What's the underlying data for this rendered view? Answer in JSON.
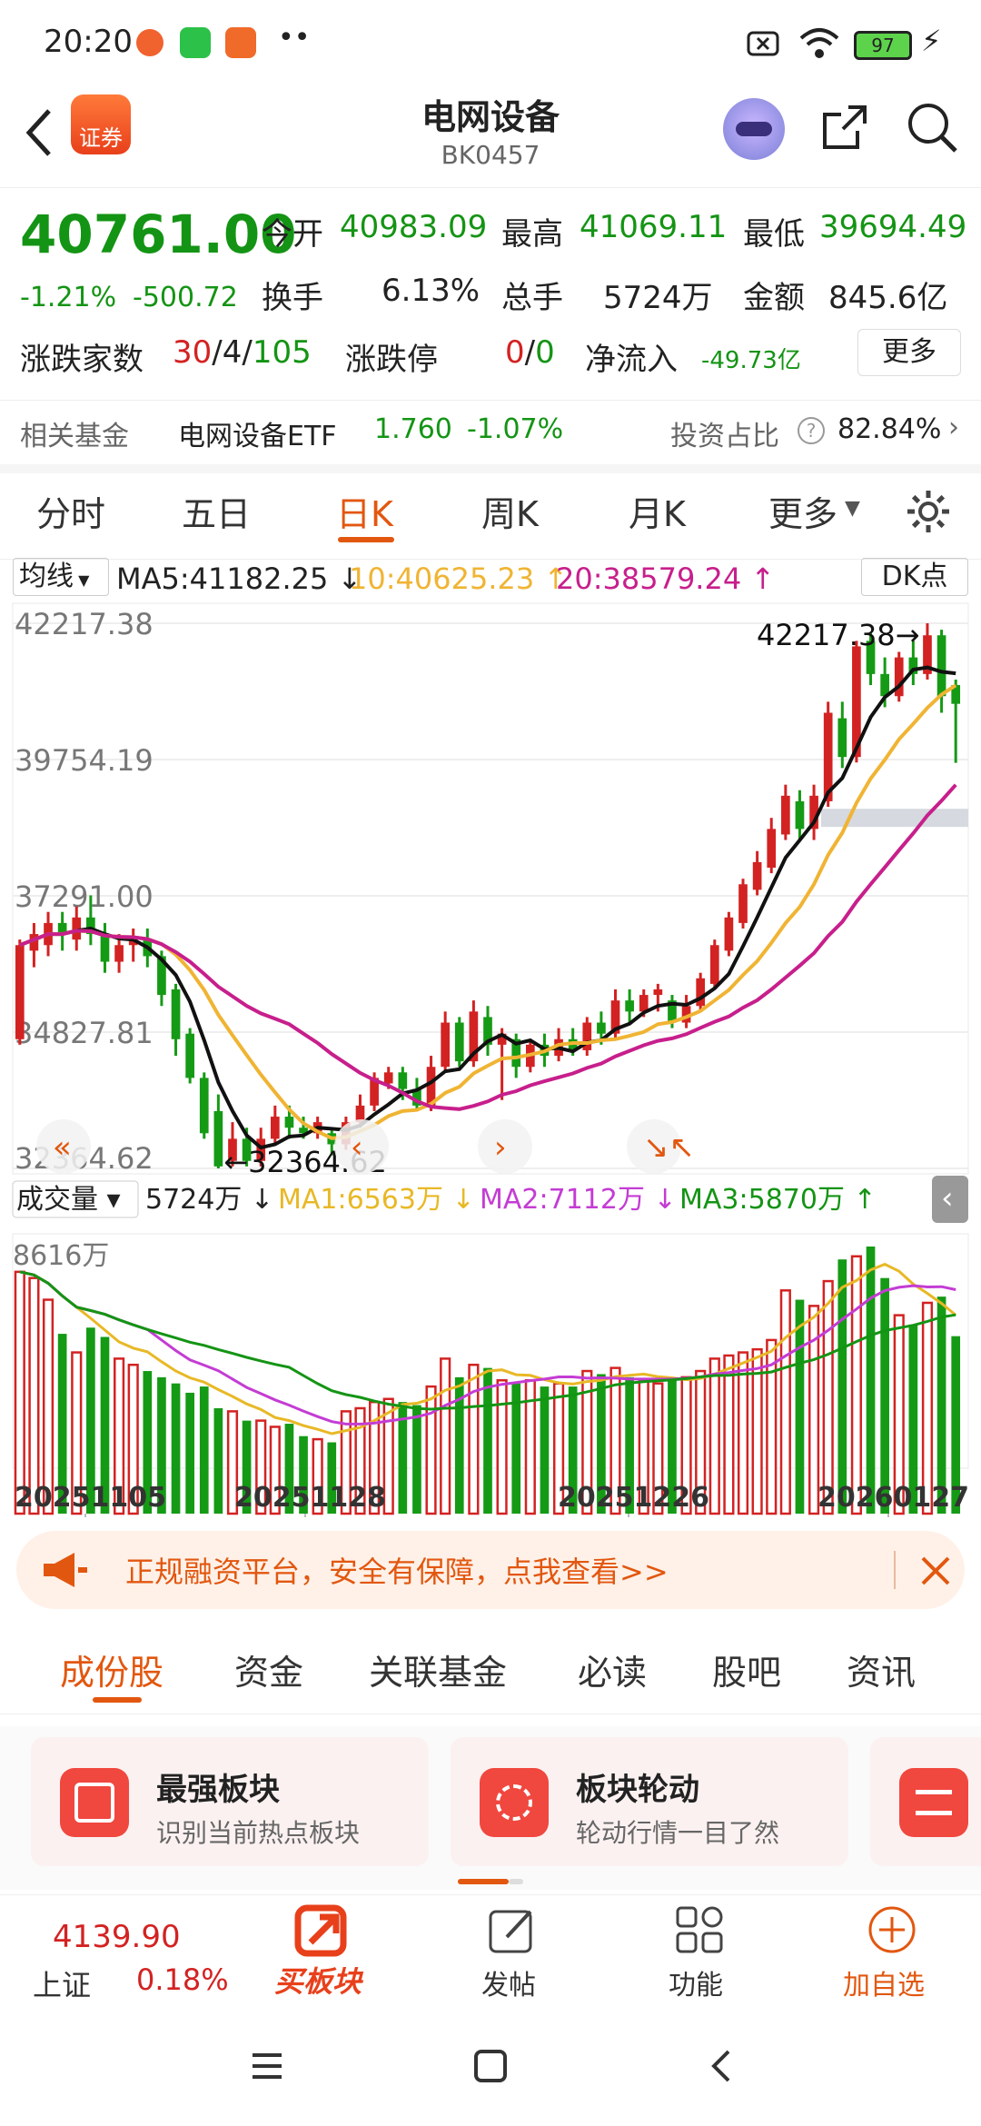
{
  "status_bar": {
    "time": "20:20",
    "battery": "97"
  },
  "header": {
    "back_icon": "back-arrow-icon",
    "logo_text": "证券",
    "title": "电网设备",
    "code": "BK0457"
  },
  "quote": {
    "price": "40761.00",
    "change_pct": "-1.21%",
    "change": "-500.72",
    "open_label": "今开",
    "open": "40983.09",
    "high_label": "最高",
    "high": "41069.11",
    "low_label": "最低",
    "low": "39694.49",
    "turnover_label": "换手",
    "turnover": "6.13%",
    "volume_label": "总手",
    "volume": "5724万",
    "amount_label": "金额",
    "amount": "845.6亿",
    "breadth_label": "涨跌家数",
    "breadth_up": "30",
    "breadth_flat": "4",
    "breadth_down": "105",
    "sep1": "/",
    "sep2": "/",
    "limit_label": "涨跌停",
    "limit_up": "0",
    "limit_down": "0",
    "limit_sep": "/",
    "netflow_label": "净流入",
    "netflow": "-49.73亿",
    "more_button": "更多"
  },
  "fund": {
    "label": "相关基金",
    "name": "电网设备ETF",
    "price": "1.760",
    "change": "-1.07%",
    "ratio_label": "投资占比",
    "ratio": "82.84%"
  },
  "tabs": [
    "分时",
    "五日",
    "日K",
    "周K",
    "月K",
    "更多"
  ],
  "active_tab": 2,
  "ma": {
    "selector": "均线",
    "ma5": "MA5:41182.25",
    "ma10": "10:40625.23",
    "ma20": "20:38579.24",
    "dk_button": "DK点"
  },
  "vol": {
    "selector": "成交量",
    "vol": "5724万",
    "ma1": "MA1:6563万",
    "ma2": "MA2:7112万",
    "ma3": "MA3:5870万",
    "axis_top": "8616万"
  },
  "chart_data": {
    "type": "candlestick",
    "y_ticks": [
      "42217.38",
      "39754.19",
      "37291.00",
      "34827.81",
      "32364.62"
    ],
    "ylim": [
      32364.62,
      42217.38
    ],
    "high_annotation": "42217.38",
    "low_annotation": "32364.62",
    "x_ticks": [
      "20251105",
      "20251128",
      "20251226",
      "20260127"
    ],
    "candles": [
      {
        "o": 34700,
        "c": 36400,
        "h": 36500,
        "l": 34600,
        "v": 7800
      },
      {
        "o": 36300,
        "c": 36600,
        "h": 36800,
        "l": 36000,
        "v": 7600
      },
      {
        "o": 36400,
        "c": 36800,
        "h": 37000,
        "l": 36200,
        "v": 6900
      },
      {
        "o": 36800,
        "c": 36600,
        "h": 37000,
        "l": 36300,
        "v": 5800
      },
      {
        "o": 36500,
        "c": 36900,
        "h": 37100,
        "l": 36300,
        "v": 5200
      },
      {
        "o": 36900,
        "c": 36600,
        "h": 37300,
        "l": 36400,
        "v": 6000
      },
      {
        "o": 36600,
        "c": 36100,
        "h": 36800,
        "l": 35900,
        "v": 5700
      },
      {
        "o": 36100,
        "c": 36400,
        "h": 36600,
        "l": 35900,
        "v": 5000
      },
      {
        "o": 36400,
        "c": 36500,
        "h": 36700,
        "l": 36100,
        "v": 4800
      },
      {
        "o": 36500,
        "c": 36200,
        "h": 36700,
        "l": 36000,
        "v": 4600
      },
      {
        "o": 36200,
        "c": 35500,
        "h": 36300,
        "l": 35300,
        "v": 4400
      },
      {
        "o": 35600,
        "c": 34700,
        "h": 35700,
        "l": 34400,
        "v": 4200
      },
      {
        "o": 34800,
        "c": 34000,
        "h": 34900,
        "l": 33900,
        "v": 3900
      },
      {
        "o": 34000,
        "c": 33000,
        "h": 34100,
        "l": 32900,
        "v": 4100
      },
      {
        "o": 33400,
        "c": 32400,
        "h": 33700,
        "l": 32364,
        "v": 3400
      },
      {
        "o": 32500,
        "c": 32900,
        "h": 33200,
        "l": 32400,
        "v": 3300
      },
      {
        "o": 32900,
        "c": 32500,
        "h": 33100,
        "l": 32400,
        "v": 3000
      },
      {
        "o": 32500,
        "c": 32900,
        "h": 33100,
        "l": 32400,
        "v": 3000
      },
      {
        "o": 32900,
        "c": 33300,
        "h": 33500,
        "l": 32800,
        "v": 2800
      },
      {
        "o": 33300,
        "c": 33100,
        "h": 33500,
        "l": 32900,
        "v": 2900
      },
      {
        "o": 33100,
        "c": 33000,
        "h": 33300,
        "l": 32900,
        "v": 2500
      },
      {
        "o": 33000,
        "c": 33200,
        "h": 33300,
        "l": 32900,
        "v": 2400
      },
      {
        "o": 33000,
        "c": 32800,
        "h": 33100,
        "l": 32600,
        "v": 2300
      },
      {
        "o": 32800,
        "c": 33200,
        "h": 33300,
        "l": 32700,
        "v": 3300
      },
      {
        "o": 33200,
        "c": 33500,
        "h": 33700,
        "l": 33100,
        "v": 3400
      },
      {
        "o": 33500,
        "c": 34000,
        "h": 34100,
        "l": 33400,
        "v": 3600
      },
      {
        "o": 33900,
        "c": 34100,
        "h": 34200,
        "l": 33800,
        "v": 3700
      },
      {
        "o": 34100,
        "c": 33800,
        "h": 34200,
        "l": 33600,
        "v": 3600
      },
      {
        "o": 33800,
        "c": 33500,
        "h": 34000,
        "l": 33400,
        "v": 3500
      },
      {
        "o": 33500,
        "c": 34200,
        "h": 34400,
        "l": 33400,
        "v": 4100
      },
      {
        "o": 34200,
        "c": 35000,
        "h": 35200,
        "l": 34100,
        "v": 5000
      },
      {
        "o": 35000,
        "c": 34300,
        "h": 35100,
        "l": 34200,
        "v": 4400
      },
      {
        "o": 34300,
        "c": 35200,
        "h": 35400,
        "l": 34200,
        "v": 4800
      },
      {
        "o": 35100,
        "c": 34600,
        "h": 35300,
        "l": 34400,
        "v": 4700
      },
      {
        "o": 34600,
        "c": 34800,
        "h": 34900,
        "l": 33600,
        "v": 4300
      },
      {
        "o": 34700,
        "c": 34200,
        "h": 34800,
        "l": 34000,
        "v": 4200
      },
      {
        "o": 34200,
        "c": 34600,
        "h": 34700,
        "l": 34100,
        "v": 4300
      },
      {
        "o": 34600,
        "c": 34400,
        "h": 34800,
        "l": 34200,
        "v": 4100
      },
      {
        "o": 34400,
        "c": 34700,
        "h": 34900,
        "l": 34300,
        "v": 4200
      },
      {
        "o": 34700,
        "c": 34500,
        "h": 34900,
        "l": 34400,
        "v": 4100
      },
      {
        "o": 34500,
        "c": 35000,
        "h": 35100,
        "l": 34400,
        "v": 4600
      },
      {
        "o": 35000,
        "c": 34800,
        "h": 35200,
        "l": 34600,
        "v": 4500
      },
      {
        "o": 34800,
        "c": 35400,
        "h": 35600,
        "l": 34700,
        "v": 4700
      },
      {
        "o": 35400,
        "c": 35200,
        "h": 35600,
        "l": 35000,
        "v": 4400
      },
      {
        "o": 35200,
        "c": 35500,
        "h": 35600,
        "l": 35100,
        "v": 4300
      },
      {
        "o": 35500,
        "c": 35600,
        "h": 35700,
        "l": 35200,
        "v": 4200
      },
      {
        "o": 35400,
        "c": 35000,
        "h": 35500,
        "l": 34900,
        "v": 4300
      },
      {
        "o": 35000,
        "c": 35300,
        "h": 35500,
        "l": 34900,
        "v": 4400
      },
      {
        "o": 35300,
        "c": 35800,
        "h": 35900,
        "l": 35200,
        "v": 4600
      },
      {
        "o": 35700,
        "c": 36400,
        "h": 36500,
        "l": 35600,
        "v": 5000
      },
      {
        "o": 36300,
        "c": 36900,
        "h": 37000,
        "l": 36200,
        "v": 5100
      },
      {
        "o": 36800,
        "c": 37500,
        "h": 37600,
        "l": 36700,
        "v": 5200
      },
      {
        "o": 37400,
        "c": 37900,
        "h": 38100,
        "l": 37300,
        "v": 5300
      },
      {
        "o": 37800,
        "c": 38500,
        "h": 38700,
        "l": 37700,
        "v": 5600
      },
      {
        "o": 38400,
        "c": 39100,
        "h": 39300,
        "l": 38300,
        "v": 7200
      },
      {
        "o": 39000,
        "c": 38500,
        "h": 39200,
        "l": 38300,
        "v": 6900
      },
      {
        "o": 38500,
        "c": 39100,
        "h": 39300,
        "l": 38300,
        "v": 6700
      },
      {
        "o": 39000,
        "c": 40600,
        "h": 40800,
        "l": 38900,
        "v": 7500
      },
      {
        "o": 40500,
        "c": 39800,
        "h": 40800,
        "l": 39600,
        "v": 8200
      },
      {
        "o": 39800,
        "c": 41800,
        "h": 41900,
        "l": 39700,
        "v": 8300
      },
      {
        "o": 41900,
        "c": 41300,
        "h": 42050,
        "l": 41100,
        "v": 8616
      },
      {
        "o": 41300,
        "c": 40900,
        "h": 41600,
        "l": 40700,
        "v": 7600
      },
      {
        "o": 40900,
        "c": 41600,
        "h": 41700,
        "l": 40800,
        "v": 6400
      },
      {
        "o": 41600,
        "c": 41300,
        "h": 41900,
        "l": 41100,
        "v": 6100
      },
      {
        "o": 41300,
        "c": 42000,
        "h": 42217,
        "l": 41200,
        "v": 6800
      },
      {
        "o": 42000,
        "c": 40900,
        "h": 42100,
        "l": 40600,
        "v": 7000
      },
      {
        "o": 41100,
        "c": 40761,
        "h": 41200,
        "l": 39694,
        "v": 5724
      }
    ],
    "ma_colors": {
      "ma5": "#111111",
      "ma10": "#f0b433",
      "ma20": "#c71f8c"
    },
    "up_color": "#d32222",
    "down_color": "#159a15"
  },
  "banner": {
    "text": "正规融资平台，安全有保障，点我查看>>"
  },
  "subtabs": [
    "成份股",
    "资金",
    "关联基金",
    "必读",
    "股吧",
    "资讯"
  ],
  "cards": [
    {
      "title": "最强板块",
      "desc": "识别当前热点板块"
    },
    {
      "title": "板块轮动",
      "desc": "轮动行情一目了然"
    }
  ],
  "bottom": {
    "index_value": "4139.90",
    "index_name": "上证",
    "index_change": "0.18%",
    "buy_label": "买板块",
    "post_label": "发帖",
    "func_label": "功能",
    "add_label": "加自选"
  },
  "colors": {
    "accent": "#e2570f",
    "up": "#d32222",
    "down": "#149414"
  }
}
